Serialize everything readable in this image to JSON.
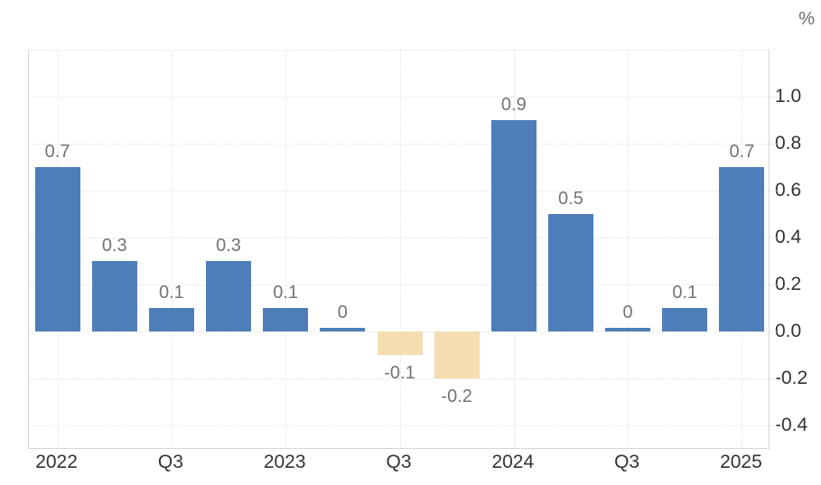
{
  "chart_data": {
    "type": "bar",
    "title": "",
    "unit_label": "%",
    "values": [
      0.7,
      0.3,
      0.1,
      0.3,
      0.1,
      0,
      -0.1,
      -0.2,
      0.9,
      0.5,
      0,
      0.1,
      0.7
    ],
    "value_labels": [
      "0.7",
      "0.3",
      "0.1",
      "0.3",
      "0.1",
      "0",
      "-0.1",
      "-0.2",
      "0.9",
      "0.5",
      "0",
      "0.1",
      "0.7"
    ],
    "x_ticks": [
      {
        "bar_index": 0,
        "label": "2022"
      },
      {
        "bar_index": 2,
        "label": "Q3"
      },
      {
        "bar_index": 4,
        "label": "2023"
      },
      {
        "bar_index": 6,
        "label": "Q3"
      },
      {
        "bar_index": 8,
        "label": "2024"
      },
      {
        "bar_index": 10,
        "label": "Q3"
      },
      {
        "bar_index": 12,
        "label": "2025"
      }
    ],
    "y_ticks": [
      {
        "value": 1.0,
        "label": "1.0"
      },
      {
        "value": 0.8,
        "label": "0.8"
      },
      {
        "value": 0.6,
        "label": "0.6"
      },
      {
        "value": 0.4,
        "label": "0.4"
      },
      {
        "value": 0.2,
        "label": "0.2"
      },
      {
        "value": 0.0,
        "label": "0.0"
      },
      {
        "value": -0.2,
        "label": "-0.2"
      },
      {
        "value": -0.4,
        "label": "-0.4"
      }
    ],
    "ylim": [
      -0.5,
      1.2
    ],
    "grid_step": 0.2,
    "grid": true,
    "legend": "none",
    "colors": {
      "positive_bar": "#4d7eba",
      "negative_bar": "#f4ddb0",
      "grid": "#e2e2e2",
      "axis_border": "#d6d6d6",
      "value_label": "#747474",
      "axis_label": "#333333",
      "unit_label": "#6b6b6b"
    }
  }
}
